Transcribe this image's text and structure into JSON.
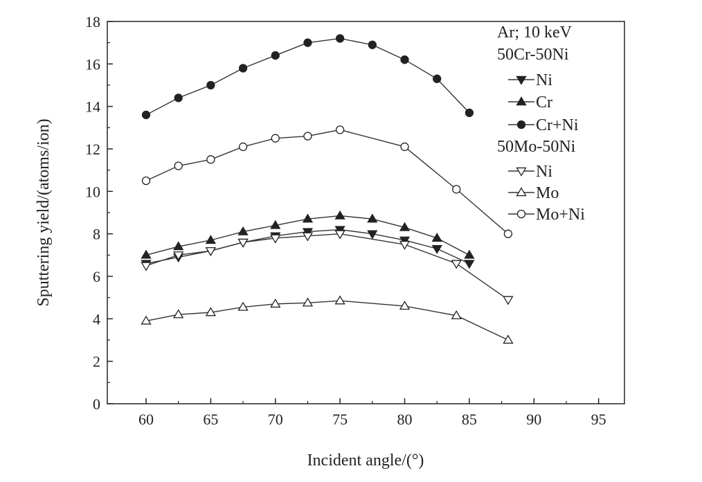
{
  "chart_data": {
    "type": "line",
    "xlabel": "Incident angle/(°)",
    "ylabel": "Sputtering yield/(atoms/ion)",
    "xlim": [
      57,
      97
    ],
    "ylim": [
      0,
      18
    ],
    "xticks": [
      "60",
      "65",
      "70",
      "75",
      "80",
      "85",
      "90",
      "95"
    ],
    "yticks": [
      "0",
      "2",
      "4",
      "6",
      "8",
      "10",
      "12",
      "14",
      "16",
      "18"
    ],
    "grid": false,
    "legend_placement": "top-right",
    "legend_title_1": "Ar; 10 keV",
    "legend_group_1": "50Cr-50Ni",
    "legend_group_2": "50Mo-50Ni",
    "series": [
      {
        "name": "Ni",
        "group": "50Cr-50Ni",
        "marker": "triangle-down",
        "filled": true,
        "x": [
          60,
          62.5,
          65,
          67.5,
          70,
          72.5,
          75,
          77.5,
          80,
          82.5,
          85
        ],
        "y": [
          6.6,
          6.9,
          7.2,
          7.6,
          7.9,
          8.1,
          8.2,
          8.0,
          7.7,
          7.3,
          6.6
        ]
      },
      {
        "name": "Cr",
        "group": "50Cr-50Ni",
        "marker": "triangle-up",
        "filled": true,
        "x": [
          60,
          62.5,
          65,
          67.5,
          70,
          72.5,
          75,
          77.5,
          80,
          82.5,
          85
        ],
        "y": [
          7.0,
          7.4,
          7.7,
          8.1,
          8.4,
          8.7,
          8.85,
          8.7,
          8.3,
          7.8,
          7.0
        ]
      },
      {
        "name": "Cr+Ni",
        "group": "50Cr-50Ni",
        "marker": "circle",
        "filled": true,
        "x": [
          60,
          62.5,
          65,
          67.5,
          70,
          72.5,
          75,
          77.5,
          80,
          82.5,
          85
        ],
        "y": [
          13.6,
          14.4,
          15.0,
          15.8,
          16.4,
          17.0,
          17.2,
          16.9,
          16.2,
          15.3,
          13.7
        ]
      },
      {
        "name": "Ni",
        "group": "50Mo-50Ni",
        "marker": "triangle-down",
        "filled": false,
        "x": [
          60,
          62.5,
          65,
          67.5,
          70,
          72.5,
          75,
          80,
          84,
          88
        ],
        "y": [
          6.5,
          7.0,
          7.2,
          7.6,
          7.8,
          7.9,
          8.0,
          7.5,
          6.6,
          4.9
        ]
      },
      {
        "name": "Mo",
        "group": "50Mo-50Ni",
        "marker": "triangle-up",
        "filled": false,
        "x": [
          60,
          62.5,
          65,
          67.5,
          70,
          72.5,
          75,
          80,
          84,
          88
        ],
        "y": [
          3.9,
          4.2,
          4.3,
          4.55,
          4.7,
          4.75,
          4.85,
          4.6,
          4.15,
          3.0
        ]
      },
      {
        "name": "Mo+Ni",
        "group": "50Mo-50Ni",
        "marker": "circle",
        "filled": false,
        "x": [
          60,
          62.5,
          65,
          67.5,
          70,
          72.5,
          75,
          80,
          84,
          88
        ],
        "y": [
          10.5,
          11.2,
          11.5,
          12.1,
          12.5,
          12.6,
          12.9,
          12.1,
          10.1,
          8.0
        ]
      }
    ]
  }
}
